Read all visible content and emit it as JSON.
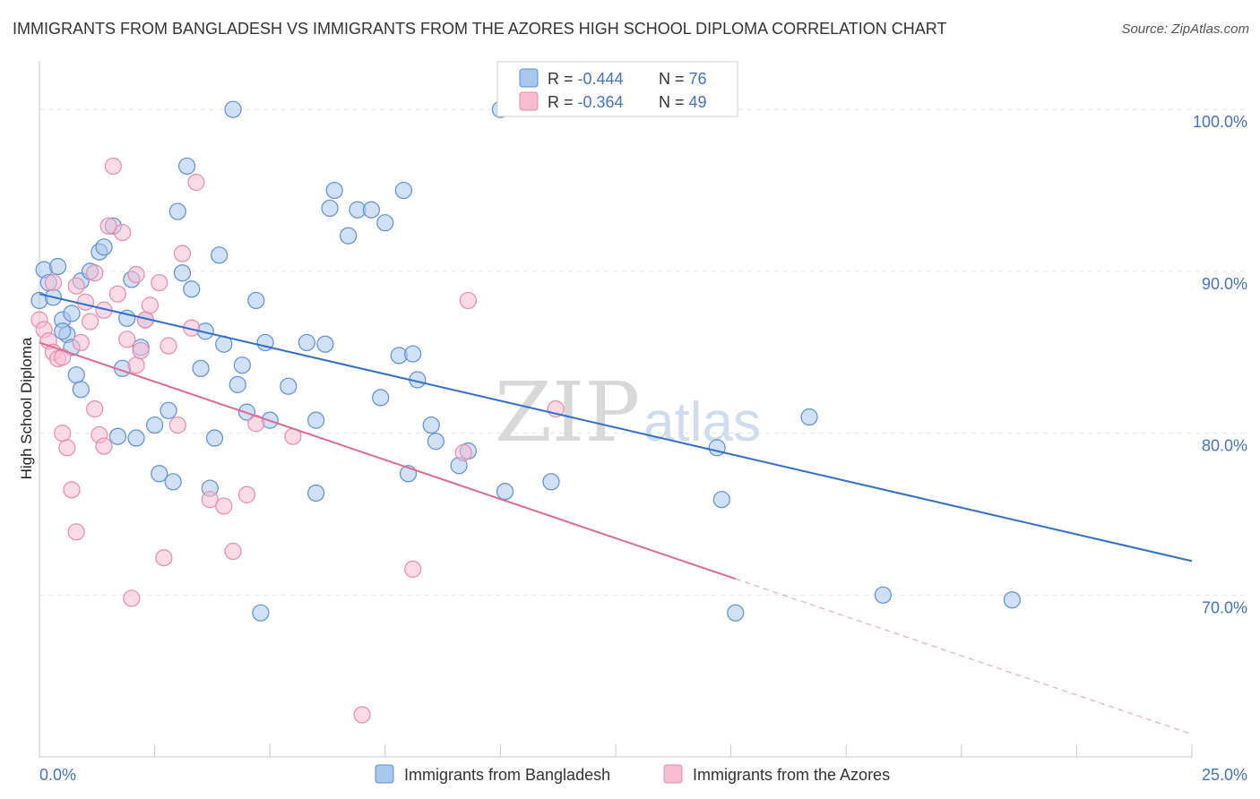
{
  "title": "IMMIGRANTS FROM BANGLADESH VS IMMIGRANTS FROM THE AZORES HIGH SCHOOL DIPLOMA CORRELATION CHART",
  "source": "Source: ZipAtlas.com",
  "watermark": {
    "zip": "ZIP",
    "atlas": "atlas"
  },
  "colors": {
    "blue_fill": "#a9c6ec",
    "blue_stroke": "#5b8fd6",
    "blue_line": "#2f6fce",
    "pink_fill": "#f6bdd0",
    "pink_stroke": "#e98aab",
    "pink_line": "#e06a94",
    "grid": "#e2e2e2",
    "axis_text": "#4472c4"
  },
  "legend": {
    "rows": [
      {
        "r_label": "R = ",
        "r_value": "-0.444",
        "n_label": "N = ",
        "n_value": "76",
        "series": "blue"
      },
      {
        "r_label": "R = ",
        "r_value": "-0.364",
        "n_label": "N = ",
        "n_value": "49",
        "series": "pink"
      }
    ]
  },
  "chart_data": {
    "type": "scatter",
    "title": "IMMIGRANTS FROM BANGLADESH VS IMMIGRANTS FROM THE AZORES HIGH SCHOOL DIPLOMA CORRELATION CHART",
    "xlabel": "",
    "ylabel": "High School Diploma",
    "xlim": [
      0,
      25
    ],
    "ylim": [
      60,
      103
    ],
    "x_tick_labels": [
      "0.0%",
      "25.0%"
    ],
    "y_ticks": [
      70,
      80,
      90,
      100
    ],
    "y_tick_labels": [
      "70.0%",
      "80.0%",
      "90.0%",
      "100.0%"
    ],
    "grid": true,
    "legend_position": "top-center",
    "series": [
      {
        "name": "Immigrants from Bangladesh",
        "color": "blue",
        "r": -0.444,
        "n": 76,
        "trend": {
          "x0": 0.0,
          "y0": 88.6,
          "x1": 25.0,
          "y1": 72.1
        },
        "points": [
          [
            0.0,
            88.2
          ],
          [
            0.1,
            90.1
          ],
          [
            0.2,
            89.3
          ],
          [
            0.3,
            88.4
          ],
          [
            0.4,
            90.3
          ],
          [
            0.5,
            87.0
          ],
          [
            0.6,
            86.1
          ],
          [
            0.7,
            85.3
          ],
          [
            0.8,
            83.6
          ],
          [
            0.9,
            82.7
          ],
          [
            0.7,
            87.4
          ],
          [
            0.9,
            89.4
          ],
          [
            1.1,
            90.0
          ],
          [
            1.3,
            91.2
          ],
          [
            1.4,
            91.5
          ],
          [
            1.6,
            92.8
          ],
          [
            1.8,
            84.0
          ],
          [
            1.9,
            87.1
          ],
          [
            2.0,
            89.5
          ],
          [
            2.1,
            79.7
          ],
          [
            2.2,
            85.3
          ],
          [
            2.3,
            87.0
          ],
          [
            2.5,
            80.5
          ],
          [
            2.6,
            77.5
          ],
          [
            2.8,
            81.4
          ],
          [
            2.9,
            77.0
          ],
          [
            3.0,
            93.7
          ],
          [
            3.1,
            89.9
          ],
          [
            3.2,
            96.5
          ],
          [
            3.3,
            88.9
          ],
          [
            3.5,
            84.0
          ],
          [
            3.6,
            86.3
          ],
          [
            3.7,
            76.6
          ],
          [
            3.8,
            79.7
          ],
          [
            3.9,
            91.0
          ],
          [
            4.0,
            85.5
          ],
          [
            4.2,
            100.0
          ],
          [
            4.3,
            83.0
          ],
          [
            4.4,
            84.2
          ],
          [
            4.5,
            81.3
          ],
          [
            4.7,
            88.2
          ],
          [
            4.8,
            68.9
          ],
          [
            4.9,
            85.6
          ],
          [
            5.0,
            80.8
          ],
          [
            5.4,
            82.9
          ],
          [
            5.8,
            85.6
          ],
          [
            6.0,
            80.8
          ],
          [
            6.0,
            76.3
          ],
          [
            6.2,
            85.5
          ],
          [
            6.3,
            93.9
          ],
          [
            6.4,
            95.0
          ],
          [
            6.7,
            92.2
          ],
          [
            6.9,
            93.8
          ],
          [
            7.2,
            93.8
          ],
          [
            7.4,
            82.2
          ],
          [
            7.5,
            93.0
          ],
          [
            7.8,
            84.8
          ],
          [
            7.9,
            95.0
          ],
          [
            8.0,
            77.5
          ],
          [
            8.1,
            84.9
          ],
          [
            8.2,
            83.3
          ],
          [
            8.5,
            80.5
          ],
          [
            8.6,
            79.5
          ],
          [
            9.1,
            78.0
          ],
          [
            9.3,
            78.9
          ],
          [
            10.0,
            100.0
          ],
          [
            10.1,
            76.4
          ],
          [
            11.1,
            77.0
          ],
          [
            14.7,
            79.1
          ],
          [
            14.8,
            75.9
          ],
          [
            15.1,
            68.9
          ],
          [
            16.7,
            81.0
          ],
          [
            18.3,
            70.0
          ],
          [
            21.1,
            69.7
          ],
          [
            1.7,
            79.8
          ],
          [
            0.5,
            86.3
          ]
        ]
      },
      {
        "name": "Immigrants from the Azores",
        "color": "pink",
        "r": -0.364,
        "n": 49,
        "trend": {
          "x0": 0.0,
          "y0": 85.6,
          "x1": 15.1,
          "y1": 71.0
        },
        "trend_dashed": {
          "x0": 15.1,
          "y0": 71.0,
          "x1": 25.0,
          "y1": 61.4
        },
        "points": [
          [
            0.0,
            87.0
          ],
          [
            0.1,
            86.4
          ],
          [
            0.2,
            85.7
          ],
          [
            0.3,
            85.0
          ],
          [
            0.4,
            84.6
          ],
          [
            0.5,
            84.7
          ],
          [
            0.5,
            80.0
          ],
          [
            0.6,
            79.1
          ],
          [
            0.7,
            76.5
          ],
          [
            0.8,
            73.9
          ],
          [
            0.9,
            85.6
          ],
          [
            1.0,
            88.1
          ],
          [
            1.1,
            86.9
          ],
          [
            1.2,
            81.5
          ],
          [
            1.3,
            79.9
          ],
          [
            1.4,
            79.2
          ],
          [
            1.5,
            92.8
          ],
          [
            1.6,
            96.5
          ],
          [
            1.7,
            88.6
          ],
          [
            1.8,
            92.4
          ],
          [
            1.9,
            85.8
          ],
          [
            2.0,
            69.8
          ],
          [
            2.1,
            84.2
          ],
          [
            2.2,
            85.1
          ],
          [
            2.3,
            87.0
          ],
          [
            2.4,
            87.9
          ],
          [
            2.6,
            89.3
          ],
          [
            2.7,
            72.3
          ],
          [
            2.8,
            85.4
          ],
          [
            3.0,
            80.5
          ],
          [
            3.1,
            91.1
          ],
          [
            3.3,
            86.5
          ],
          [
            3.4,
            95.5
          ],
          [
            3.7,
            75.9
          ],
          [
            4.0,
            75.5
          ],
          [
            4.2,
            72.7
          ],
          [
            4.5,
            76.2
          ],
          [
            4.7,
            80.6
          ],
          [
            5.5,
            79.8
          ],
          [
            7.0,
            62.6
          ],
          [
            8.1,
            71.6
          ],
          [
            9.2,
            78.8
          ],
          [
            9.3,
            88.2
          ],
          [
            11.2,
            81.5
          ],
          [
            1.2,
            89.9
          ],
          [
            0.8,
            89.1
          ],
          [
            1.4,
            87.6
          ],
          [
            2.1,
            89.8
          ],
          [
            0.3,
            89.3
          ]
        ]
      }
    ]
  }
}
